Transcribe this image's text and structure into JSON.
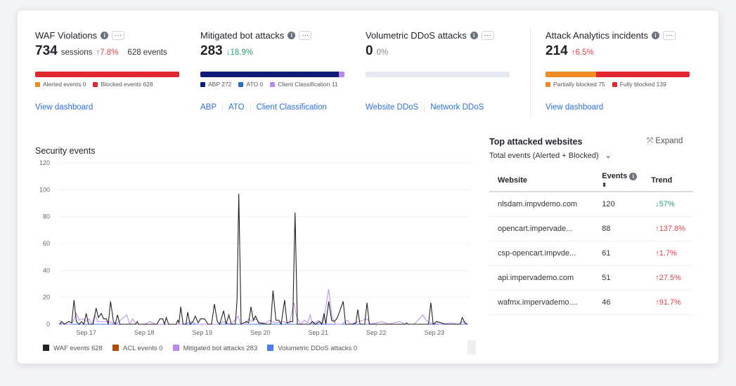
{
  "widgets": [
    {
      "title": "WAF Violations",
      "value": "734",
      "unit": "sessions",
      "trend": "↑7.8%",
      "extra": "628 events",
      "legend": [
        "Alerted events 0",
        "Blocked events 628"
      ],
      "links": [
        "View dashboard"
      ]
    },
    {
      "title": "Mitigated bot attacks",
      "value": "283",
      "trend": "↓18.9%",
      "legend": [
        "ABP 272",
        "ATO 0",
        "Client Classification 11"
      ],
      "links": [
        "ABP",
        "ATO",
        "Client Classification"
      ]
    },
    {
      "title": "Volumetric DDoS attacks",
      "value": "0",
      "trend": "0%",
      "links": [
        "Website DDoS",
        "Network DDoS"
      ]
    },
    {
      "title": "Attack Analytics incidents",
      "value": "214",
      "trend": "↑6.5%",
      "legend": [
        "Partially blocked 75",
        "Fully blocked 139"
      ],
      "links": [
        "View dashboard"
      ]
    }
  ],
  "colors": {
    "alerted": "#f08a24",
    "blocked": "#e0262e",
    "abp": "#101a78",
    "ato": "#2d6cc0",
    "client": "#b88af0",
    "waf": "#222222",
    "acl": "#b24a0a",
    "bot": "#b88af0",
    "ddos": "#4a7ef0"
  },
  "top_sites": {
    "title": "Top attacked websites",
    "expand": "Expand",
    "filter": "Total events (Alerted + Blocked)",
    "headers": [
      "Website",
      "Events",
      "Trend"
    ],
    "rows": [
      [
        "nlsdam.impvdemo.com",
        "120",
        "↓57%"
      ],
      [
        "opencart.impervade...",
        "88",
        "↑137.8%"
      ],
      [
        "csp-opencart.impvde...",
        "61",
        "↑1.7%"
      ],
      [
        "api.impervademo.com",
        "51",
        "↑27.5%"
      ],
      [
        "wafmx.impervademo....",
        "46",
        "↑91.7%"
      ]
    ]
  },
  "chart_data": {
    "type": "line",
    "title": "Security events",
    "ylim": [
      0,
      120
    ],
    "yticks": [
      0,
      20,
      40,
      60,
      80,
      100,
      120
    ],
    "xticks": [
      "Sep 17",
      "Sep 18",
      "Sep 19",
      "Sep 20",
      "Sep 21",
      "Sep 22",
      "Sep 23"
    ],
    "xlim_days_from_sep17": [
      -0.48,
      6.62
    ],
    "series": [
      {
        "name": "WAF events 628",
        "color": "#222222",
        "points": [
          [
            -0.46,
            0
          ],
          [
            -0.42,
            2
          ],
          [
            -0.38,
            0
          ],
          [
            -0.3,
            2
          ],
          [
            -0.25,
            1
          ],
          [
            -0.21,
            18
          ],
          [
            -0.17,
            2
          ],
          [
            -0.12,
            0
          ],
          [
            -0.08,
            2
          ],
          [
            -0.04,
            0
          ],
          [
            0.0,
            8
          ],
          [
            0.04,
            0
          ],
          [
            0.12,
            0
          ],
          [
            0.17,
            12
          ],
          [
            0.21,
            5
          ],
          [
            0.26,
            8
          ],
          [
            0.3,
            4
          ],
          [
            0.35,
            4
          ],
          [
            0.38,
            0
          ],
          [
            0.42,
            17
          ],
          [
            0.47,
            2
          ],
          [
            0.5,
            0
          ],
          [
            0.54,
            7
          ],
          [
            0.58,
            0
          ],
          [
            0.85,
            0
          ],
          [
            0.88,
            2
          ],
          [
            0.9,
            0
          ],
          [
            1.22,
            0
          ],
          [
            1.27,
            4
          ],
          [
            1.32,
            4
          ],
          [
            1.35,
            0
          ],
          [
            1.38,
            5
          ],
          [
            1.42,
            0
          ],
          [
            1.55,
            0
          ],
          [
            1.58,
            3
          ],
          [
            1.6,
            1
          ],
          [
            1.63,
            13
          ],
          [
            1.67,
            0
          ],
          [
            1.72,
            0
          ],
          [
            1.75,
            9
          ],
          [
            1.79,
            0
          ],
          [
            1.84,
            2
          ],
          [
            1.88,
            6
          ],
          [
            1.93,
            1
          ],
          [
            1.97,
            4
          ],
          [
            2.04,
            4
          ],
          [
            2.1,
            0
          ],
          [
            2.16,
            0
          ],
          [
            2.21,
            15
          ],
          [
            2.26,
            2
          ],
          [
            2.3,
            0
          ],
          [
            2.37,
            10
          ],
          [
            2.41,
            0
          ],
          [
            2.46,
            7
          ],
          [
            2.5,
            0
          ],
          [
            2.57,
            0
          ],
          [
            2.6,
            18
          ],
          [
            2.63,
            97
          ],
          [
            2.67,
            0
          ],
          [
            2.76,
            2
          ],
          [
            2.8,
            1
          ],
          [
            2.84,
            13
          ],
          [
            2.88,
            3
          ],
          [
            2.92,
            6
          ],
          [
            2.97,
            1
          ],
          [
            3.12,
            0
          ],
          [
            3.18,
            0
          ],
          [
            3.22,
            25
          ],
          [
            3.27,
            3
          ],
          [
            3.32,
            3
          ],
          [
            3.36,
            0
          ],
          [
            3.42,
            18
          ],
          [
            3.46,
            1
          ],
          [
            3.52,
            2
          ],
          [
            3.56,
            2
          ],
          [
            3.6,
            83
          ],
          [
            3.64,
            0
          ],
          [
            3.85,
            0
          ],
          [
            3.9,
            2
          ],
          [
            3.95,
            0
          ],
          [
            4.02,
            2
          ],
          [
            4.06,
            0
          ],
          [
            4.1,
            8
          ],
          [
            4.13,
            0
          ],
          [
            4.18,
            17
          ],
          [
            4.23,
            3
          ],
          [
            4.28,
            2
          ],
          [
            4.33,
            5
          ],
          [
            4.43,
            17
          ],
          [
            4.47,
            0
          ],
          [
            4.6,
            0
          ],
          [
            4.65,
            1
          ],
          [
            4.68,
            11
          ],
          [
            4.72,
            0
          ],
          [
            4.8,
            0
          ],
          [
            4.84,
            16
          ],
          [
            4.88,
            0
          ],
          [
            5.0,
            0
          ],
          [
            5.5,
            0
          ],
          [
            5.52,
            1
          ],
          [
            5.55,
            0
          ],
          [
            5.9,
            0
          ],
          [
            5.94,
            16
          ],
          [
            5.98,
            0
          ],
          [
            6.04,
            2
          ],
          [
            6.12,
            1
          ],
          [
            6.2,
            0
          ],
          [
            6.45,
            0
          ],
          [
            6.48,
            5
          ],
          [
            6.53,
            1
          ],
          [
            6.57,
            0
          ]
        ]
      },
      {
        "name": "ACL events 0",
        "color": "#b24a0a",
        "points": [
          [
            -0.46,
            0
          ],
          [
            6.57,
            0
          ]
        ]
      },
      {
        "name": "Mitigated bot attacks 283",
        "color": "#b88af0",
        "points": [
          [
            -0.46,
            3
          ],
          [
            -0.42,
            0
          ],
          [
            -0.25,
            0
          ],
          [
            -0.17,
            8
          ],
          [
            -0.12,
            3
          ],
          [
            -0.06,
            4
          ],
          [
            0.0,
            2
          ],
          [
            0.05,
            4
          ],
          [
            0.1,
            0
          ],
          [
            0.15,
            7
          ],
          [
            0.2,
            2
          ],
          [
            0.3,
            2
          ],
          [
            0.4,
            2
          ],
          [
            0.5,
            0
          ],
          [
            0.62,
            4
          ],
          [
            0.7,
            7
          ],
          [
            0.75,
            0
          ],
          [
            0.8,
            4
          ],
          [
            0.86,
            0
          ],
          [
            1.0,
            0
          ],
          [
            1.1,
            2
          ],
          [
            1.2,
            0
          ],
          [
            1.7,
            0
          ],
          [
            1.8,
            2
          ],
          [
            1.9,
            0
          ],
          [
            2.3,
            0
          ],
          [
            2.35,
            2
          ],
          [
            2.5,
            0
          ],
          [
            2.62,
            6
          ],
          [
            2.66,
            0
          ],
          [
            2.74,
            0
          ],
          [
            2.8,
            4
          ],
          [
            2.86,
            2
          ],
          [
            2.92,
            4
          ],
          [
            3.0,
            1
          ],
          [
            3.1,
            1
          ],
          [
            3.16,
            3
          ],
          [
            3.25,
            1
          ],
          [
            3.4,
            2
          ],
          [
            3.5,
            0
          ],
          [
            3.58,
            16
          ],
          [
            3.63,
            5
          ],
          [
            3.7,
            0
          ],
          [
            3.76,
            3
          ],
          [
            3.82,
            1
          ],
          [
            3.86,
            7
          ],
          [
            3.9,
            0
          ],
          [
            4.0,
            3
          ],
          [
            4.08,
            0
          ],
          [
            4.18,
            26
          ],
          [
            4.24,
            5
          ],
          [
            4.3,
            0
          ],
          [
            4.4,
            0
          ],
          [
            4.5,
            3
          ],
          [
            4.56,
            0
          ],
          [
            4.84,
            4
          ],
          [
            4.9,
            0
          ],
          [
            5.1,
            2
          ],
          [
            5.2,
            0
          ],
          [
            5.4,
            2
          ],
          [
            5.5,
            0
          ],
          [
            5.65,
            0
          ],
          [
            5.72,
            3
          ],
          [
            5.8,
            7
          ],
          [
            5.86,
            3
          ],
          [
            5.92,
            1
          ],
          [
            6.1,
            0
          ],
          [
            6.3,
            1
          ],
          [
            6.4,
            0
          ],
          [
            6.48,
            2
          ],
          [
            6.57,
            0
          ]
        ]
      },
      {
        "name": "Volumetric DDoS attacks 0",
        "color": "#4a7ef0",
        "points": [
          [
            -0.46,
            0
          ],
          [
            6.57,
            0
          ]
        ]
      }
    ]
  }
}
